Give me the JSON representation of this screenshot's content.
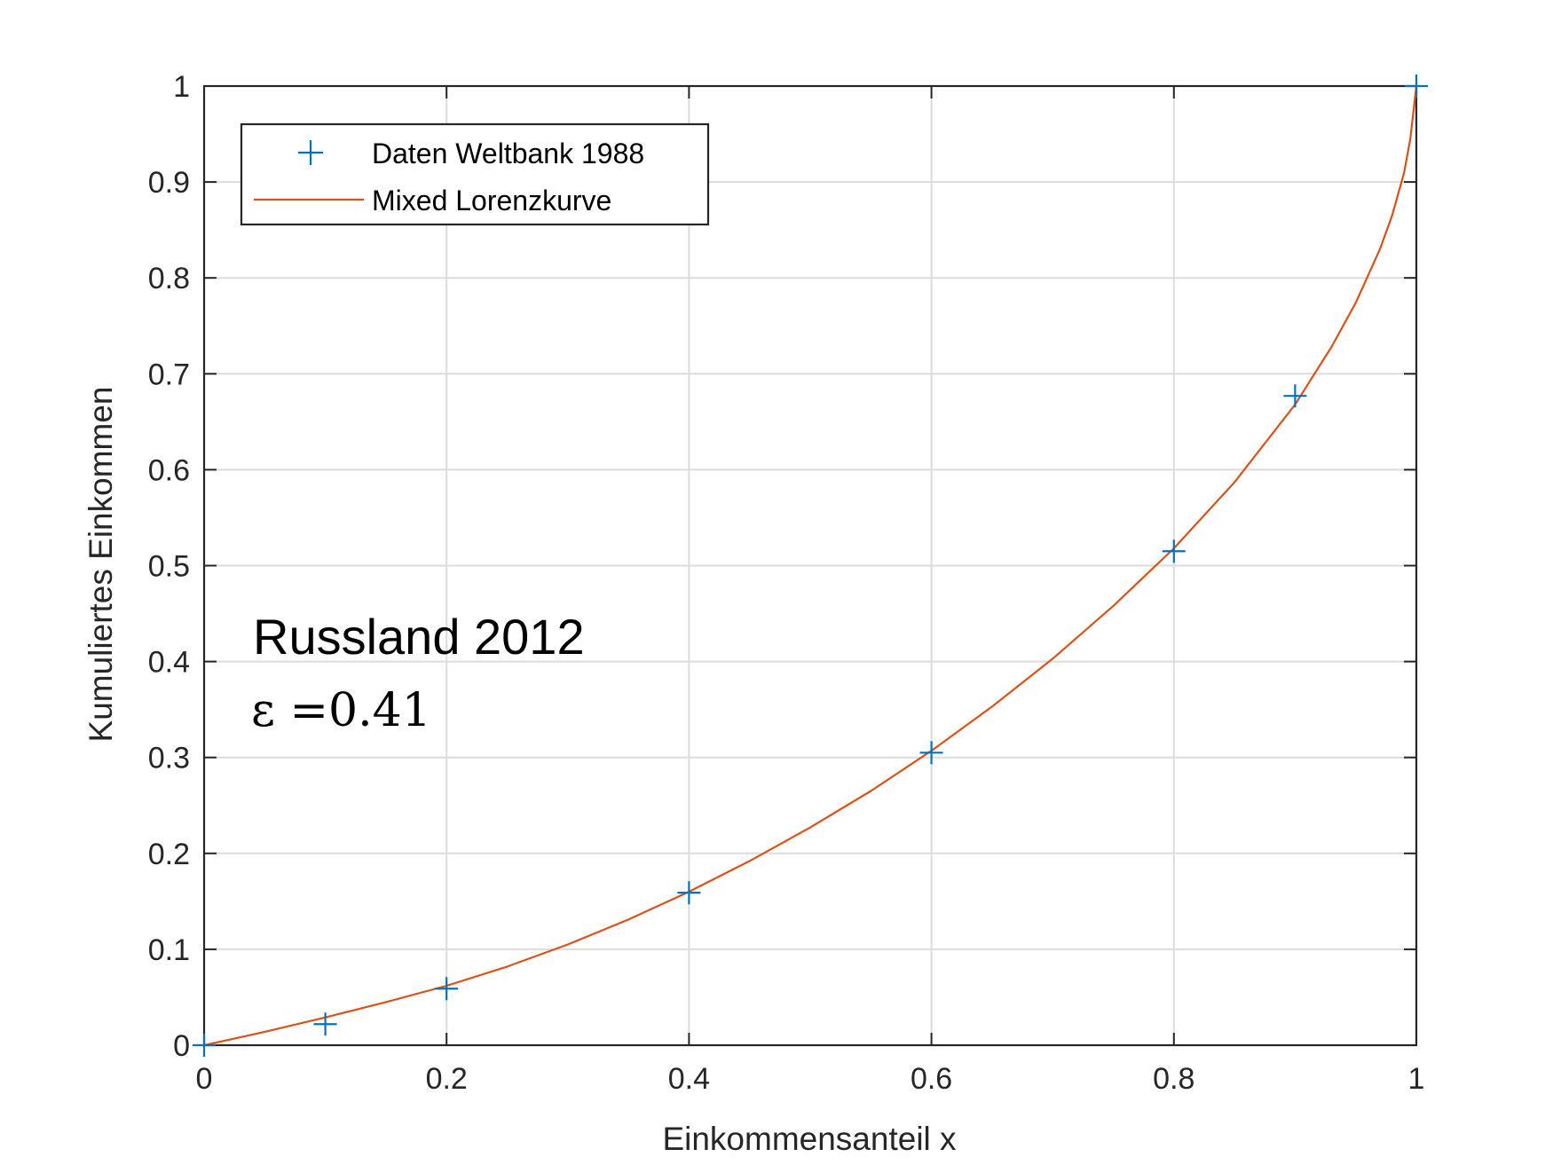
{
  "chart_data": {
    "type": "line",
    "xlabel": "Einkommensanteil x",
    "ylabel": "Kumuliertes Einkommen",
    "xlim": [
      0,
      1
    ],
    "ylim": [
      0,
      1
    ],
    "x_ticks": [
      "0",
      "0.2",
      "0.4",
      "0.6",
      "0.8",
      "1"
    ],
    "y_ticks": [
      "0",
      "0.1",
      "0.2",
      "0.3",
      "0.4",
      "0.5",
      "0.6",
      "0.7",
      "0.8",
      "0.9",
      "1"
    ],
    "grid": true,
    "legend_position": "top-left",
    "series": [
      {
        "name": "Daten Weltbank 1988",
        "style": "markers",
        "marker": "+",
        "color": "#0072BD",
        "x": [
          0,
          0.1,
          0.2,
          0.4,
          0.6,
          0.8,
          0.9,
          1.0
        ],
        "y": [
          0,
          0.022,
          0.059,
          0.159,
          0.305,
          0.515,
          0.677,
          1.0
        ]
      },
      {
        "name": "Mixed Lorenzkurve",
        "style": "line",
        "color": "#D95319",
        "x": [
          0,
          0.05,
          0.1,
          0.15,
          0.2,
          0.25,
          0.3,
          0.35,
          0.4,
          0.45,
          0.5,
          0.55,
          0.6,
          0.65,
          0.7,
          0.75,
          0.8,
          0.85,
          0.9,
          0.93,
          0.95,
          0.97,
          0.98,
          0.99,
          0.995,
          1.0
        ],
        "y": [
          0,
          0.014,
          0.029,
          0.045,
          0.062,
          0.082,
          0.105,
          0.131,
          0.16,
          0.192,
          0.227,
          0.265,
          0.307,
          0.353,
          0.403,
          0.458,
          0.518,
          0.587,
          0.668,
          0.728,
          0.774,
          0.83,
          0.865,
          0.91,
          0.945,
          1.0
        ]
      }
    ],
    "annotations": [
      {
        "text": "Russland 2012"
      },
      {
        "text": "ε =0.41"
      }
    ]
  }
}
